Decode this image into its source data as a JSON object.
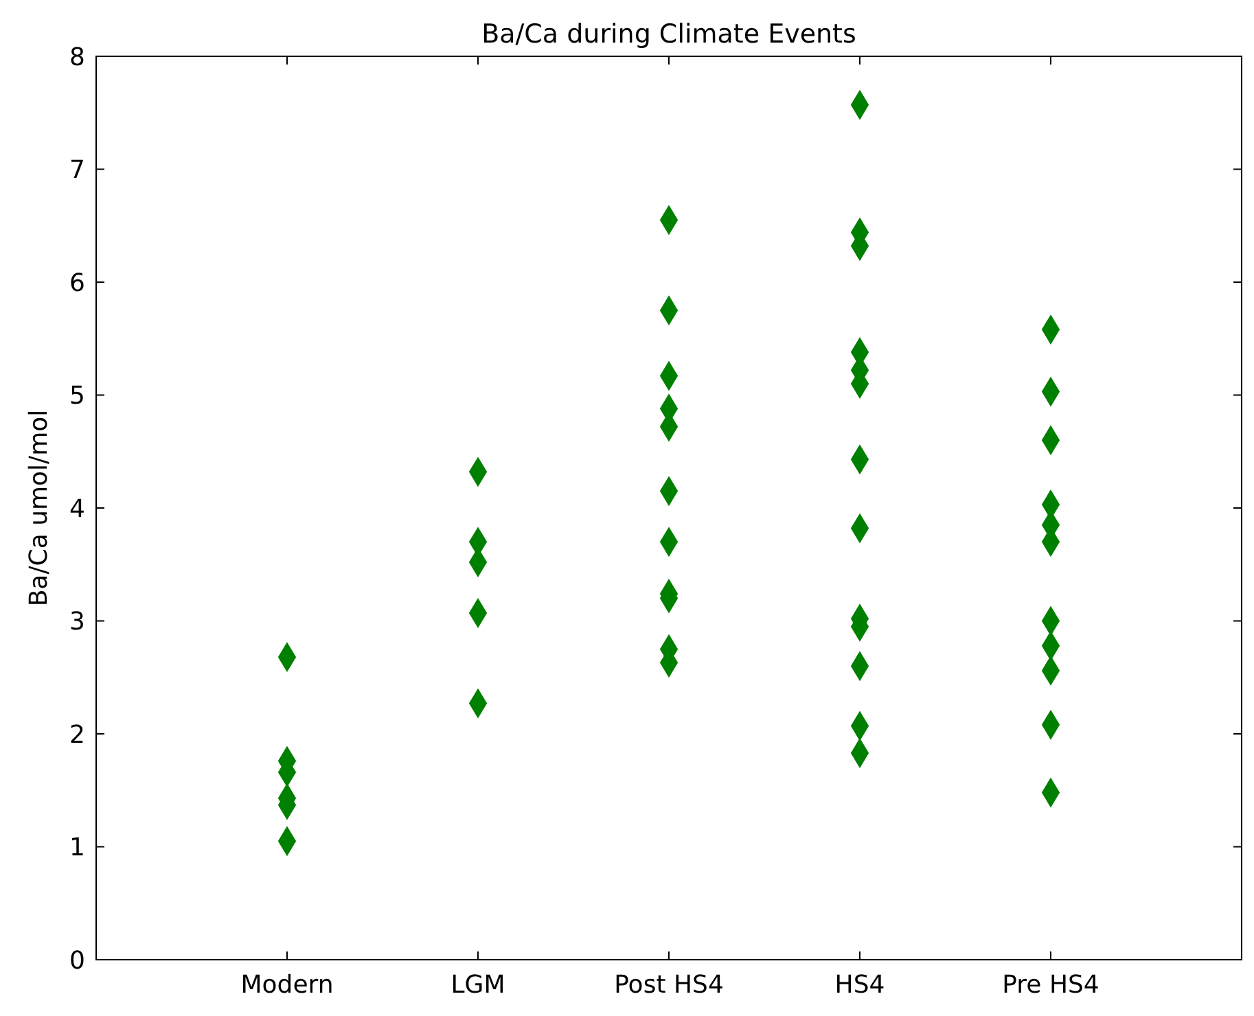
{
  "chart_data": {
    "type": "scatter",
    "title": "Ba/Ca during Climate Events",
    "ylabel": "Ba/Ca umol/mol",
    "categories": [
      "Modern",
      "LGM",
      "Post HS4",
      "HS4",
      "Pre HS4"
    ],
    "series": [
      {
        "color": "#008000",
        "x": [
          "Modern",
          "Modern",
          "Modern",
          "Modern",
          "Modern",
          "Modern",
          "LGM",
          "LGM",
          "LGM",
          "LGM",
          "LGM",
          "Post HS4",
          "Post HS4",
          "Post HS4",
          "Post HS4",
          "Post HS4",
          "Post HS4",
          "Post HS4",
          "Post HS4",
          "Post HS4",
          "Post HS4",
          "Post HS4",
          "HS4",
          "HS4",
          "HS4",
          "HS4",
          "HS4",
          "HS4",
          "HS4",
          "HS4",
          "HS4",
          "HS4",
          "HS4",
          "HS4",
          "HS4",
          "Pre HS4",
          "Pre HS4",
          "Pre HS4",
          "Pre HS4",
          "Pre HS4",
          "Pre HS4",
          "Pre HS4",
          "Pre HS4",
          "Pre HS4",
          "Pre HS4",
          "Pre HS4"
        ],
        "values": [
          2.68,
          1.76,
          1.66,
          1.43,
          1.37,
          1.05,
          4.32,
          3.7,
          3.52,
          3.07,
          2.27,
          6.55,
          5.75,
          5.17,
          4.88,
          4.72,
          4.15,
          3.7,
          3.24,
          3.2,
          2.75,
          2.63,
          7.57,
          6.44,
          6.32,
          5.38,
          5.22,
          5.1,
          4.43,
          3.82,
          3.02,
          2.95,
          2.6,
          2.07,
          1.83,
          5.58,
          5.03,
          4.6,
          4.03,
          3.85,
          3.7,
          3.0,
          2.78,
          2.56,
          2.08,
          1.48
        ]
      }
    ],
    "ylim": [
      0,
      8
    ],
    "yticks": [
      0,
      1,
      2,
      3,
      4,
      5,
      6,
      7,
      8
    ],
    "marker": "diamond",
    "grid": false
  }
}
